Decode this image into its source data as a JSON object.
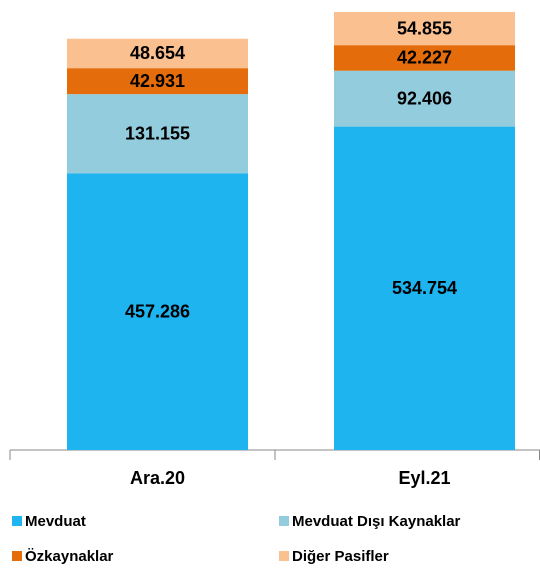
{
  "chart_data": {
    "type": "stacked_bar",
    "categories": [
      "Ara.20",
      "Eyl.21"
    ],
    "series": [
      {
        "name": "Mevduat",
        "color": "#1db4f0",
        "values": [
          457.286,
          534.754
        ]
      },
      {
        "name": "Mevduat Dışı Kaynaklar",
        "color": "#93cddd",
        "values": [
          131.155,
          92.406
        ]
      },
      {
        "name": "Özkaynaklar",
        "color": "#e46c0a",
        "values": [
          42.931,
          42.227
        ]
      },
      {
        "name": "Diğer Pasifler",
        "color": "#fac090",
        "values": [
          48.654,
          54.855
        ]
      }
    ]
  }
}
